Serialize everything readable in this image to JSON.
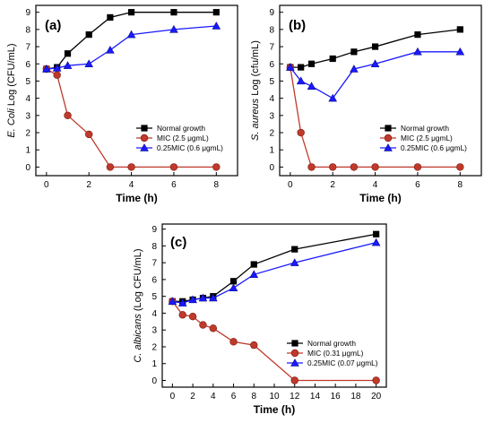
{
  "chart_data": [
    {
      "type": "line",
      "panel_label": "(a)",
      "xlabel": "Time (h)",
      "ylabel_italic": "E. Coli",
      "ylabel_rest": " Log (CFU/mL)",
      "xlim": [
        -0.5,
        9
      ],
      "ylim": [
        -0.5,
        9.4
      ],
      "xticks": [
        0,
        2,
        4,
        6,
        8
      ],
      "yticks": [
        0,
        1,
        2,
        3,
        4,
        5,
        6,
        7,
        8,
        9
      ],
      "legend_position": "right",
      "series": [
        {
          "name": "Normal growth",
          "marker": "square",
          "color": "#000000",
          "x": [
            0,
            0.5,
            1,
            2,
            3,
            4,
            6,
            8
          ],
          "y": [
            5.7,
            5.8,
            6.6,
            7.7,
            8.7,
            9.0,
            9.0,
            9.0
          ]
        },
        {
          "name": "MIC (2.5 μgmL)",
          "marker": "circle",
          "color": "#c0392b",
          "x": [
            0,
            0.5,
            1,
            2,
            3,
            4,
            6,
            8
          ],
          "y": [
            5.7,
            5.35,
            3.0,
            1.9,
            0,
            0,
            0,
            0
          ]
        },
        {
          "name": "0.25MIC (0.6 μgmL)",
          "marker": "triangle",
          "color": "#1a1aff",
          "x": [
            0,
            0.5,
            1,
            2,
            3,
            4,
            6,
            8
          ],
          "y": [
            5.7,
            5.75,
            5.9,
            6.0,
            6.8,
            7.7,
            8.0,
            8.2
          ]
        }
      ]
    },
    {
      "type": "line",
      "panel_label": "(b)",
      "xlabel": "Time (h)",
      "ylabel_italic": "S. aureus",
      "ylabel_rest": " Log (cfu/mL)",
      "xlim": [
        -0.5,
        9
      ],
      "ylim": [
        -0.5,
        9.4
      ],
      "xticks": [
        0,
        2,
        4,
        6,
        8
      ],
      "yticks": [
        0,
        1,
        2,
        3,
        4,
        5,
        6,
        7,
        8,
        9
      ],
      "legend_position": "right",
      "series": [
        {
          "name": "Normal growth",
          "marker": "square",
          "color": "#000000",
          "x": [
            0,
            0.5,
            1,
            2,
            3,
            4,
            6,
            8
          ],
          "y": [
            5.8,
            5.8,
            6.0,
            6.3,
            6.7,
            7.0,
            7.7,
            8.0
          ]
        },
        {
          "name": "MIC (2.5 μgmL)",
          "marker": "circle",
          "color": "#c0392b",
          "x": [
            0,
            0.5,
            1,
            2,
            3,
            4,
            6,
            8
          ],
          "y": [
            5.8,
            2.0,
            0,
            0,
            0,
            0,
            0,
            0
          ]
        },
        {
          "name": "0.25MIC (0.6 μgmL)",
          "marker": "triangle",
          "color": "#1a1aff",
          "x": [
            0,
            0.5,
            1,
            2,
            3,
            4,
            6,
            8
          ],
          "y": [
            5.8,
            5.0,
            4.7,
            4.0,
            5.7,
            6.0,
            6.7,
            6.7
          ]
        }
      ]
    },
    {
      "type": "line",
      "panel_label": "(c)",
      "xlabel": "Time (h)",
      "ylabel_italic": "C. albicans",
      "ylabel_rest": " (Log CFU/mL)",
      "xlim": [
        -1,
        21
      ],
      "ylim": [
        -0.4,
        9.3
      ],
      "xticks": [
        0,
        2,
        4,
        6,
        8,
        10,
        12,
        14,
        16,
        18,
        20
      ],
      "yticks": [
        0,
        1,
        2,
        3,
        4,
        5,
        6,
        7,
        8,
        9
      ],
      "legend_position": "right",
      "series": [
        {
          "name": "Normal growth",
          "marker": "square",
          "color": "#000000",
          "x": [
            0,
            1,
            2,
            3,
            4,
            6,
            8,
            12,
            20
          ],
          "y": [
            4.7,
            4.7,
            4.8,
            4.9,
            5.0,
            5.9,
            6.9,
            7.8,
            8.7
          ]
        },
        {
          "name": "MIC  (0.31 μgmL)",
          "marker": "circle",
          "color": "#c0392b",
          "x": [
            0,
            1,
            2,
            3,
            4,
            6,
            8,
            12,
            20
          ],
          "y": [
            4.7,
            3.9,
            3.8,
            3.3,
            3.1,
            2.3,
            2.1,
            0,
            0
          ]
        },
        {
          "name": "0.25MIC  (0.07 μgmL)",
          "marker": "triangle",
          "color": "#1a1aff",
          "x": [
            0,
            1,
            2,
            3,
            4,
            6,
            8,
            12,
            20
          ],
          "y": [
            4.7,
            4.6,
            4.8,
            4.9,
            4.9,
            5.5,
            6.3,
            7.0,
            8.2
          ]
        }
      ]
    }
  ]
}
